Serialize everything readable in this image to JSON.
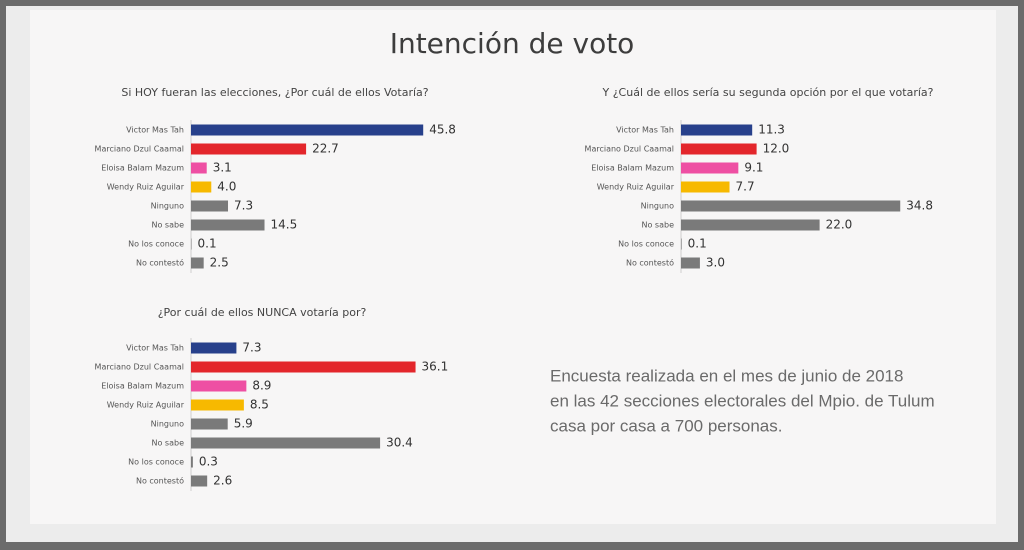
{
  "title": "Intención de voto",
  "note": [
    "Encuesta realizada en el mes de junio de 2018",
    "en las 42 secciones electorales del Mpio. de Tulum",
    "casa por casa a 700 personas."
  ],
  "chart_data": [
    {
      "type": "bar",
      "title": "Si HOY fueran las elecciones, ¿Por cuál de ellos Votaría?",
      "categories": [
        "Victor Mas Tah",
        "Marciano Dzul Caamal",
        "Eloisa Balam Mazum",
        "Wendy Ruiz Aguilar",
        "Ninguno",
        "No sabe",
        "No los conoce",
        "No contestó"
      ],
      "values": [
        45.8,
        22.7,
        3.1,
        4.0,
        7.3,
        14.5,
        0.1,
        2.5
      ],
      "value_labels": [
        "45.8",
        "22.7",
        "3.1",
        "4.0",
        "7.3",
        "14.5",
        "0.1",
        "2.5"
      ],
      "colors": [
        "#27408b",
        "#e3262b",
        "#ee4fa3",
        "#f7b900",
        "#7a7a7a",
        "#7a7a7a",
        "#7a7a7a",
        "#7a7a7a"
      ]
    },
    {
      "type": "bar",
      "title": "Y ¿Cuál de ellos sería su segunda opción por el que votaría?",
      "categories": [
        "Victor Mas Tah",
        "Marciano Dzul Caamal",
        "Eloisa Balam Mazum",
        "Wendy Ruiz Aguilar",
        "Ninguno",
        "No sabe",
        "No los conoce",
        "No contestó"
      ],
      "values": [
        11.3,
        12.0,
        9.1,
        7.7,
        34.8,
        22.0,
        0.1,
        3.0
      ],
      "value_labels": [
        "11.3",
        "12.0",
        "9.1",
        "7.7",
        "34.8",
        "22.0",
        "0.1",
        "3.0"
      ],
      "colors": [
        "#27408b",
        "#e3262b",
        "#ee4fa3",
        "#f7b900",
        "#7a7a7a",
        "#7a7a7a",
        "#7a7a7a",
        "#7a7a7a"
      ]
    },
    {
      "type": "bar",
      "title": "¿Por cuál de ellos  NUNCA votaría por?",
      "categories": [
        "Victor Mas Tah",
        "Marciano Dzul Caamal",
        "Eloisa Balam Mazum",
        "Wendy Ruiz Aguilar",
        "Ninguno",
        "No sabe",
        "No los conoce",
        "No contestó"
      ],
      "values": [
        7.3,
        36.1,
        8.9,
        8.5,
        5.9,
        30.4,
        0.3,
        2.6
      ],
      "value_labels": [
        "7.3",
        "36.1",
        "8.9",
        "8.5",
        "5.9",
        "30.4",
        "0.3",
        "2.6"
      ],
      "colors": [
        "#27408b",
        "#e3262b",
        "#ee4fa3",
        "#f7b900",
        "#7a7a7a",
        "#7a7a7a",
        "#7a7a7a",
        "#7a7a7a"
      ]
    }
  ]
}
